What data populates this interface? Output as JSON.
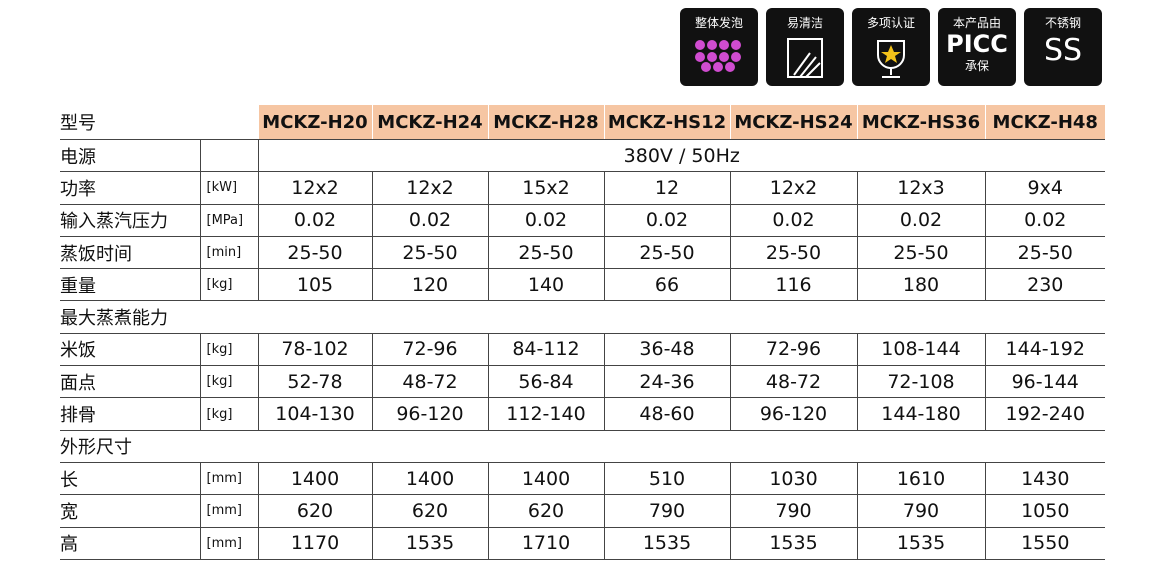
{
  "badges": [
    {
      "lines": [
        "整体发泡"
      ]
    },
    {
      "lines": [
        "易清洁"
      ]
    },
    {
      "lines": [
        "多项认证"
      ]
    },
    {
      "lines": [
        "本产品由",
        "PICC",
        "承保"
      ]
    },
    {
      "lines": [
        "不锈钢",
        "SS"
      ]
    }
  ],
  "table": {
    "header": {
      "label": "型号",
      "models": [
        "MCKZ-H20",
        "MCKZ-H24",
        "MCKZ-H28",
        "MCKZ-HS12",
        "MCKZ-HS24",
        "MCKZ-HS36",
        "MCKZ-H48"
      ]
    },
    "rows": [
      {
        "label": "电源",
        "value": "380V / 50Hz"
      },
      {
        "label": "功率",
        "unit": "[kW]",
        "values": [
          "12x2",
          "12x2",
          "15x2",
          "12",
          "12x2",
          "12x3",
          "9x4"
        ]
      },
      {
        "label": "输入蒸汽压力",
        "unit": "[MPa]",
        "values": [
          "0.02",
          "0.02",
          "0.02",
          "0.02",
          "0.02",
          "0.02",
          "0.02"
        ]
      },
      {
        "label": "蒸饭时间",
        "unit": "[min]",
        "values": [
          "25-50",
          "25-50",
          "25-50",
          "25-50",
          "25-50",
          "25-50",
          "25-50"
        ]
      },
      {
        "label": "重量",
        "unit": "[kg]",
        "values": [
          "105",
          "120",
          "140",
          "66",
          "116",
          "180",
          "230"
        ]
      },
      {
        "label": "最大蒸煮能力"
      },
      {
        "label": "米饭",
        "unit": "[kg]",
        "values": [
          "78-102",
          "72-96",
          "84-112",
          "36-48",
          "72-96",
          "108-144",
          "144-192"
        ]
      },
      {
        "label": "面点",
        "unit": "[kg]",
        "values": [
          "52-78",
          "48-72",
          "56-84",
          "24-36",
          "48-72",
          "72-108",
          "96-144"
        ]
      },
      {
        "label": "排骨",
        "unit": "[kg]",
        "values": [
          "104-130",
          "96-120",
          "112-140",
          "48-60",
          "96-120",
          "144-180",
          "192-240"
        ]
      },
      {
        "label": "外形尺寸"
      },
      {
        "label": "长",
        "unit": "[mm]",
        "values": [
          "1400",
          "1400",
          "1400",
          "510",
          "1030",
          "1610",
          "1430"
        ]
      },
      {
        "label": "宽",
        "unit": "[mm]",
        "values": [
          "620",
          "620",
          "620",
          "790",
          "790",
          "790",
          "1050"
        ]
      },
      {
        "label": "高",
        "unit": "[mm]",
        "values": [
          "1170",
          "1535",
          "1710",
          "1535",
          "1535",
          "1535",
          "1550"
        ]
      }
    ]
  }
}
